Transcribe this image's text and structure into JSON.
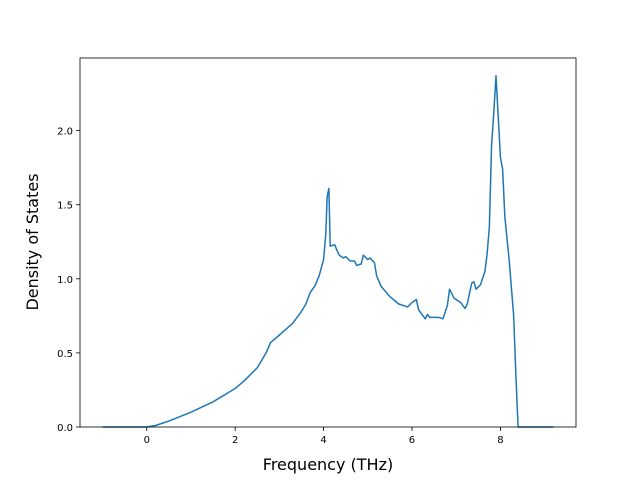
{
  "chart_data": {
    "type": "line",
    "x_label": "Frequency (THz)",
    "y_label": "Density of States",
    "xlim": [
      -1.51,
      9.71
    ],
    "ylim": [
      0,
      2.49
    ],
    "xticks": [
      0,
      2,
      4,
      6,
      8
    ],
    "yticks": [
      {
        "value": 0,
        "label": "0.0"
      },
      0.5,
      {
        "value": 1,
        "label": "1.0"
      },
      1.5,
      {
        "value": 2,
        "label": "2.0"
      }
    ],
    "series": [
      {
        "color": "#1f77b4",
        "x": [
          -1,
          0,
          0.2,
          0.5,
          1,
          1.5,
          2,
          2.2,
          2.5,
          2.7,
          2.8,
          3,
          3.3,
          3.5,
          3.6,
          3.7,
          3.8,
          3.9,
          4,
          4.05,
          4.08,
          4.12,
          4.15,
          4.25,
          4.35,
          4.45,
          4.5,
          4.6,
          4.7,
          4.75,
          4.85,
          4.9,
          5,
          5.05,
          5.15,
          5.2,
          5.3,
          5.5,
          5.7,
          5.9,
          6,
          6.1,
          6.15,
          6.3,
          6.35,
          6.4,
          6.6,
          6.7,
          6.8,
          6.85,
          6.95,
          7.1,
          7.2,
          7.25,
          7.35,
          7.4,
          7.45,
          7.55,
          7.65,
          7.7,
          7.75,
          7.8,
          7.85,
          7.9,
          7.95,
          8,
          8.05,
          8.1,
          8.2,
          8.3,
          8.35,
          8.4,
          9.2
        ],
        "values": [
          0,
          0,
          0.01,
          0.04,
          0.1,
          0.17,
          0.26,
          0.31,
          0.4,
          0.5,
          0.57,
          0.62,
          0.7,
          0.78,
          0.83,
          0.91,
          0.95,
          1.02,
          1.13,
          1.3,
          1.55,
          1.61,
          1.22,
          1.23,
          1.16,
          1.14,
          1.15,
          1.12,
          1.12,
          1.09,
          1.1,
          1.16,
          1.13,
          1.14,
          1.11,
          1.02,
          0.95,
          0.88,
          0.83,
          0.81,
          0.84,
          0.86,
          0.79,
          0.73,
          0.76,
          0.74,
          0.74,
          0.73,
          0.82,
          0.93,
          0.87,
          0.84,
          0.8,
          0.83,
          0.97,
          0.98,
          0.93,
          0.96,
          1.05,
          1.17,
          1.35,
          1.9,
          2.12,
          2.37,
          2.1,
          1.82,
          1.74,
          1.42,
          1.12,
          0.75,
          0.35,
          0,
          0
        ]
      }
    ]
  }
}
